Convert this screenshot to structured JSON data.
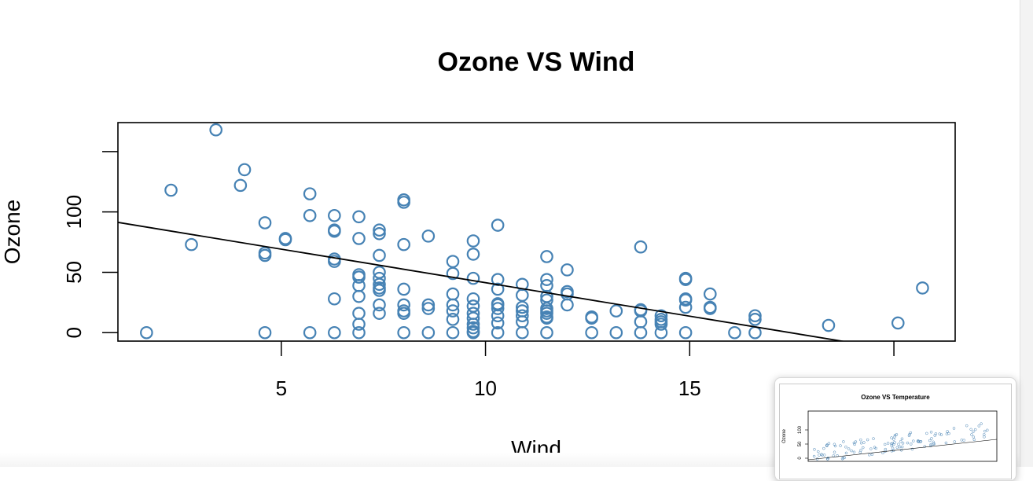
{
  "chart_data": {
    "type": "scatter",
    "title": "Ozone VS Wind",
    "xlabel": "Wind",
    "ylabel": "Ozone",
    "xlim": [
      1,
      21.5
    ],
    "ylim": [
      -7,
      174
    ],
    "x_ticks": [
      5,
      10,
      15,
      20
    ],
    "x_tick_labels": [
      "5",
      "10",
      "15",
      ""
    ],
    "y_ticks": [
      0,
      50,
      100,
      150
    ],
    "y_tick_labels": [
      "0",
      "50",
      "100",
      ""
    ],
    "point_color": "#4682B4",
    "line_color": "#000000",
    "regression": {
      "intercept": 96.9,
      "slope": -5.55
    },
    "points": [
      [
        1.7,
        0
      ],
      [
        2.3,
        118
      ],
      [
        2.8,
        73
      ],
      [
        3.4,
        168
      ],
      [
        4.0,
        122
      ],
      [
        4.1,
        135
      ],
      [
        4.6,
        91
      ],
      [
        4.6,
        66
      ],
      [
        4.6,
        64
      ],
      [
        4.6,
        0
      ],
      [
        5.1,
        78
      ],
      [
        5.1,
        77
      ],
      [
        5.7,
        115
      ],
      [
        5.7,
        97
      ],
      [
        5.7,
        0
      ],
      [
        6.3,
        97
      ],
      [
        6.3,
        85
      ],
      [
        6.3,
        84
      ],
      [
        6.3,
        61
      ],
      [
        6.3,
        59
      ],
      [
        6.3,
        28
      ],
      [
        6.3,
        0
      ],
      [
        6.9,
        96
      ],
      [
        6.9,
        78
      ],
      [
        6.9,
        48
      ],
      [
        6.9,
        46
      ],
      [
        6.9,
        39
      ],
      [
        6.9,
        30
      ],
      [
        6.9,
        16
      ],
      [
        6.9,
        7
      ],
      [
        6.9,
        0
      ],
      [
        7.4,
        85
      ],
      [
        7.4,
        82
      ],
      [
        7.4,
        64
      ],
      [
        7.4,
        50
      ],
      [
        7.4,
        45
      ],
      [
        7.4,
        40
      ],
      [
        7.4,
        37
      ],
      [
        7.4,
        35
      ],
      [
        7.4,
        23
      ],
      [
        7.4,
        16
      ],
      [
        8.0,
        110
      ],
      [
        8.0,
        108
      ],
      [
        8.0,
        73
      ],
      [
        8.0,
        36
      ],
      [
        8.0,
        23
      ],
      [
        8.0,
        18
      ],
      [
        8.0,
        16
      ],
      [
        8.0,
        0
      ],
      [
        8.6,
        80
      ],
      [
        8.6,
        23
      ],
      [
        8.6,
        20
      ],
      [
        8.6,
        0
      ],
      [
        9.2,
        59
      ],
      [
        9.2,
        49
      ],
      [
        9.2,
        32
      ],
      [
        9.2,
        23
      ],
      [
        9.2,
        18
      ],
      [
        9.2,
        11
      ],
      [
        9.2,
        0
      ],
      [
        9.7,
        76
      ],
      [
        9.7,
        65
      ],
      [
        9.7,
        45
      ],
      [
        9.7,
        28
      ],
      [
        9.7,
        22
      ],
      [
        9.7,
        16
      ],
      [
        9.7,
        12
      ],
      [
        9.7,
        7
      ],
      [
        9.7,
        4
      ],
      [
        9.7,
        1
      ],
      [
        9.7,
        0
      ],
      [
        10.3,
        89
      ],
      [
        10.3,
        44
      ],
      [
        10.3,
        36
      ],
      [
        10.3,
        24
      ],
      [
        10.3,
        23
      ],
      [
        10.3,
        20
      ],
      [
        10.3,
        14
      ],
      [
        10.3,
        8
      ],
      [
        10.3,
        0
      ],
      [
        10.9,
        40
      ],
      [
        10.9,
        31
      ],
      [
        10.9,
        21
      ],
      [
        10.9,
        18
      ],
      [
        10.9,
        14
      ],
      [
        10.9,
        9
      ],
      [
        10.9,
        0
      ],
      [
        11.5,
        63
      ],
      [
        11.5,
        44
      ],
      [
        11.5,
        39
      ],
      [
        11.5,
        30
      ],
      [
        11.5,
        27
      ],
      [
        11.5,
        20
      ],
      [
        11.5,
        18
      ],
      [
        11.5,
        16
      ],
      [
        11.5,
        13
      ],
      [
        11.5,
        12
      ],
      [
        11.5,
        0
      ],
      [
        12.0,
        52
      ],
      [
        12.0,
        34
      ],
      [
        12.0,
        32
      ],
      [
        12.0,
        23
      ],
      [
        12.6,
        13
      ],
      [
        12.6,
        12
      ],
      [
        12.6,
        0
      ],
      [
        13.2,
        18
      ],
      [
        13.2,
        0
      ],
      [
        13.8,
        71
      ],
      [
        13.8,
        19
      ],
      [
        13.8,
        18
      ],
      [
        13.8,
        9
      ],
      [
        13.8,
        0
      ],
      [
        14.3,
        14
      ],
      [
        14.3,
        11
      ],
      [
        14.3,
        9
      ],
      [
        14.3,
        7
      ],
      [
        14.3,
        0
      ],
      [
        14.9,
        45
      ],
      [
        14.9,
        44
      ],
      [
        14.9,
        28
      ],
      [
        14.9,
        27
      ],
      [
        14.9,
        21
      ],
      [
        14.9,
        0
      ],
      [
        15.5,
        32
      ],
      [
        15.5,
        21
      ],
      [
        15.5,
        20
      ],
      [
        16.1,
        0
      ],
      [
        16.6,
        14
      ],
      [
        16.6,
        11
      ],
      [
        16.6,
        0
      ],
      [
        18.4,
        6
      ],
      [
        20.1,
        8
      ],
      [
        20.7,
        37
      ]
    ]
  },
  "thumbnail": {
    "title": "Ozone VS Temperature",
    "ylabel": "Ozone",
    "y_tick_labels": [
      "0",
      "50",
      "100"
    ]
  }
}
